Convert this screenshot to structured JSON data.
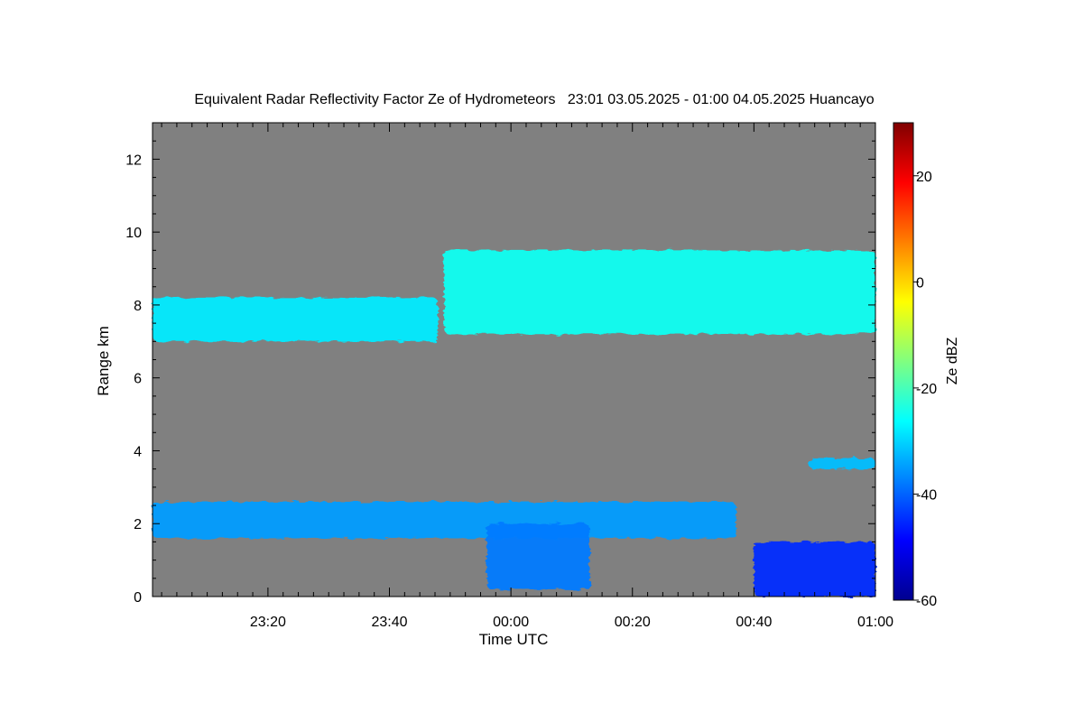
{
  "chart_data": {
    "type": "heatmap",
    "title": "Equivalent Radar Reflectivity Factor Ze of Hydrometeors   23:01 03.05.2025 - 01:00 04.05.2025 Huancayo",
    "xlabel": "Time UTC",
    "ylabel": "Range km",
    "colorbar_label": "Ze dBZ",
    "x_ticks": [
      "23:20",
      "23:40",
      "00:00",
      "00:20",
      "00:40",
      "01:00"
    ],
    "x_tick_minutes": [
      19,
      39,
      59,
      79,
      99,
      119
    ],
    "xlim_minutes": [
      0,
      119
    ],
    "y_ticks": [
      0,
      2,
      4,
      6,
      8,
      10,
      12
    ],
    "ylim": [
      0,
      13
    ],
    "colorbar_ticks": [
      -60,
      -40,
      -20,
      0,
      20
    ],
    "colorbar_range": [
      -60,
      30
    ],
    "colormap": "jet",
    "background_color": "#808080",
    "echo_regions": [
      {
        "name": "cirrus-layer-early",
        "t_start": 0,
        "t_end": 47,
        "base_km": 7.0,
        "top_km": 8.2,
        "ze_dbz": -28
      },
      {
        "name": "cirrus-layer-late",
        "t_start": 48,
        "t_end": 119,
        "base_km": 7.2,
        "top_km": 9.5,
        "ze_dbz": -25
      },
      {
        "name": "low-layer",
        "t_start": 0,
        "t_end": 96,
        "base_km": 1.6,
        "top_km": 2.6,
        "ze_dbz": -35
      },
      {
        "name": "fall-streak",
        "t_start": 55,
        "t_end": 72,
        "base_km": 0.2,
        "top_km": 2.0,
        "ze_dbz": -38
      },
      {
        "name": "surface-echo",
        "t_start": 99,
        "t_end": 119,
        "base_km": 0.0,
        "top_km": 1.5,
        "ze_dbz": -45
      },
      {
        "name": "mid-level-patch",
        "t_start": 108,
        "t_end": 119,
        "base_km": 3.5,
        "top_km": 3.8,
        "ze_dbz": -32
      }
    ]
  }
}
